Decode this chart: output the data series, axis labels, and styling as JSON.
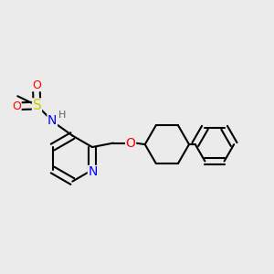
{
  "bg_color": "#ebebeb",
  "bond_color": "#000000",
  "bond_width": 1.5,
  "atom_colors": {
    "N": "#0000ff",
    "O": "#ff0000",
    "S": "#cccc00",
    "H": "#606060",
    "C": "#000000"
  },
  "font_size": 9,
  "xlim": [
    0,
    10
  ],
  "ylim": [
    0,
    10
  ]
}
